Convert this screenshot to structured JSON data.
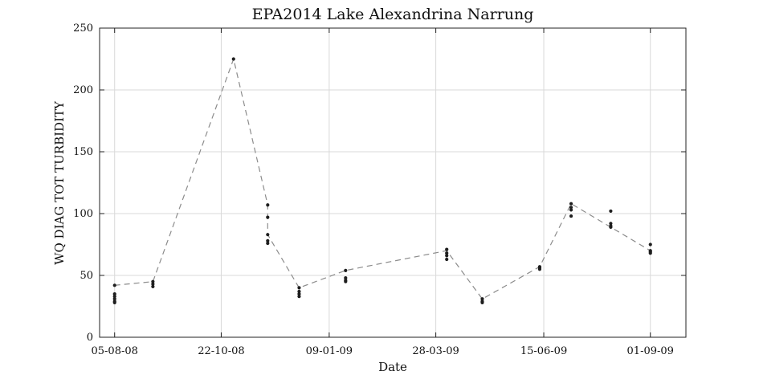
{
  "chart_data": {
    "type": "scatter",
    "title": "EPA2014 Lake Alexandrina Narrung",
    "xlabel": "Date",
    "ylabel": "WQ DIAG TOT TURBIDITY",
    "xlim": [
      "2008-07-25",
      "2009-09-27"
    ],
    "ylim": [
      0,
      250
    ],
    "yticks": [
      0,
      50,
      100,
      150,
      200,
      250
    ],
    "xticks": [
      {
        "date": "2008-08-05",
        "label": "05-08-08"
      },
      {
        "date": "2008-10-22",
        "label": "22-10-08"
      },
      {
        "date": "2009-01-09",
        "label": "09-01-09"
      },
      {
        "date": "2009-03-28",
        "label": "28-03-09"
      },
      {
        "date": "2009-06-15",
        "label": "15-06-09"
      },
      {
        "date": "2009-09-01",
        "label": "01-09-09"
      }
    ],
    "grid": true,
    "series": [
      {
        "style": "markers",
        "color": "#1e1e1e",
        "points": [
          {
            "x": "2008-08-05",
            "y": 42
          },
          {
            "x": "2008-08-05",
            "y": 35
          },
          {
            "x": "2008-08-05",
            "y": 33
          },
          {
            "x": "2008-08-05",
            "y": 31
          },
          {
            "x": "2008-08-05",
            "y": 29
          },
          {
            "x": "2008-08-05",
            "y": 28
          },
          {
            "x": "2008-09-02",
            "y": 45
          },
          {
            "x": "2008-09-02",
            "y": 43
          },
          {
            "x": "2008-09-02",
            "y": 41
          },
          {
            "x": "2008-11-00",
            "y": 225
          },
          {
            "x": "2008-11-25",
            "y": 107
          },
          {
            "x": "2008-11-25",
            "y": 97
          },
          {
            "x": "2008-11-25",
            "y": 83
          },
          {
            "x": "2008-11-25",
            "y": 78
          },
          {
            "x": "2008-11-25",
            "y": 76
          },
          {
            "x": "2008-12-18",
            "y": 40
          },
          {
            "x": "2008-12-18",
            "y": 37
          },
          {
            "x": "2008-12-18",
            "y": 35
          },
          {
            "x": "2008-12-18",
            "y": 33
          },
          {
            "x": "2009-01-21",
            "y": 54
          },
          {
            "x": "2009-01-21",
            "y": 48
          },
          {
            "x": "2009-01-21",
            "y": 46
          },
          {
            "x": "2009-01-21",
            "y": 45
          },
          {
            "x": "2009-04-05",
            "y": 71
          },
          {
            "x": "2009-04-05",
            "y": 68
          },
          {
            "x": "2009-04-05",
            "y": 66
          },
          {
            "x": "2009-04-05",
            "y": 63
          },
          {
            "x": "2009-05-01",
            "y": 31
          },
          {
            "x": "2009-05-01",
            "y": 29
          },
          {
            "x": "2009-05-01",
            "y": 28
          },
          {
            "x": "2009-06-12",
            "y": 57
          },
          {
            "x": "2009-06-12",
            "y": 56
          },
          {
            "x": "2009-06-12",
            "y": 55
          },
          {
            "x": "2009-07-05",
            "y": 108
          },
          {
            "x": "2009-07-05",
            "y": 105
          },
          {
            "x": "2009-07-05",
            "y": 103
          },
          {
            "x": "2009-07-05",
            "y": 98
          },
          {
            "x": "2009-08-03",
            "y": 102
          },
          {
            "x": "2009-08-03",
            "y": 92
          },
          {
            "x": "2009-08-03",
            "y": 90
          },
          {
            "x": "2009-08-03",
            "y": 89
          },
          {
            "x": "2009-09-01",
            "y": 75
          },
          {
            "x": "2009-09-01",
            "y": 70
          },
          {
            "x": "2009-09-01",
            "y": 69
          },
          {
            "x": "2009-09-01",
            "y": 68
          }
        ]
      },
      {
        "style": "dashed-line",
        "color": "#8c8c8c",
        "points": [
          {
            "x": "2008-08-05",
            "y": 42
          },
          {
            "x": "2008-09-02",
            "y": 45
          },
          {
            "x": "2008-11-00",
            "y": 225
          },
          {
            "x": "2008-11-25",
            "y": 107
          },
          {
            "x": "2008-11-25",
            "y": 83
          },
          {
            "x": "2008-12-18",
            "y": 40
          },
          {
            "x": "2009-01-21",
            "y": 54
          },
          {
            "x": "2009-04-05",
            "y": 70
          },
          {
            "x": "2009-05-01",
            "y": 31
          },
          {
            "x": "2009-06-12",
            "y": 57
          },
          {
            "x": "2009-07-05",
            "y": 108
          },
          {
            "x": "2009-08-03",
            "y": 89
          },
          {
            "x": "2009-09-01",
            "y": 70
          }
        ]
      }
    ]
  }
}
